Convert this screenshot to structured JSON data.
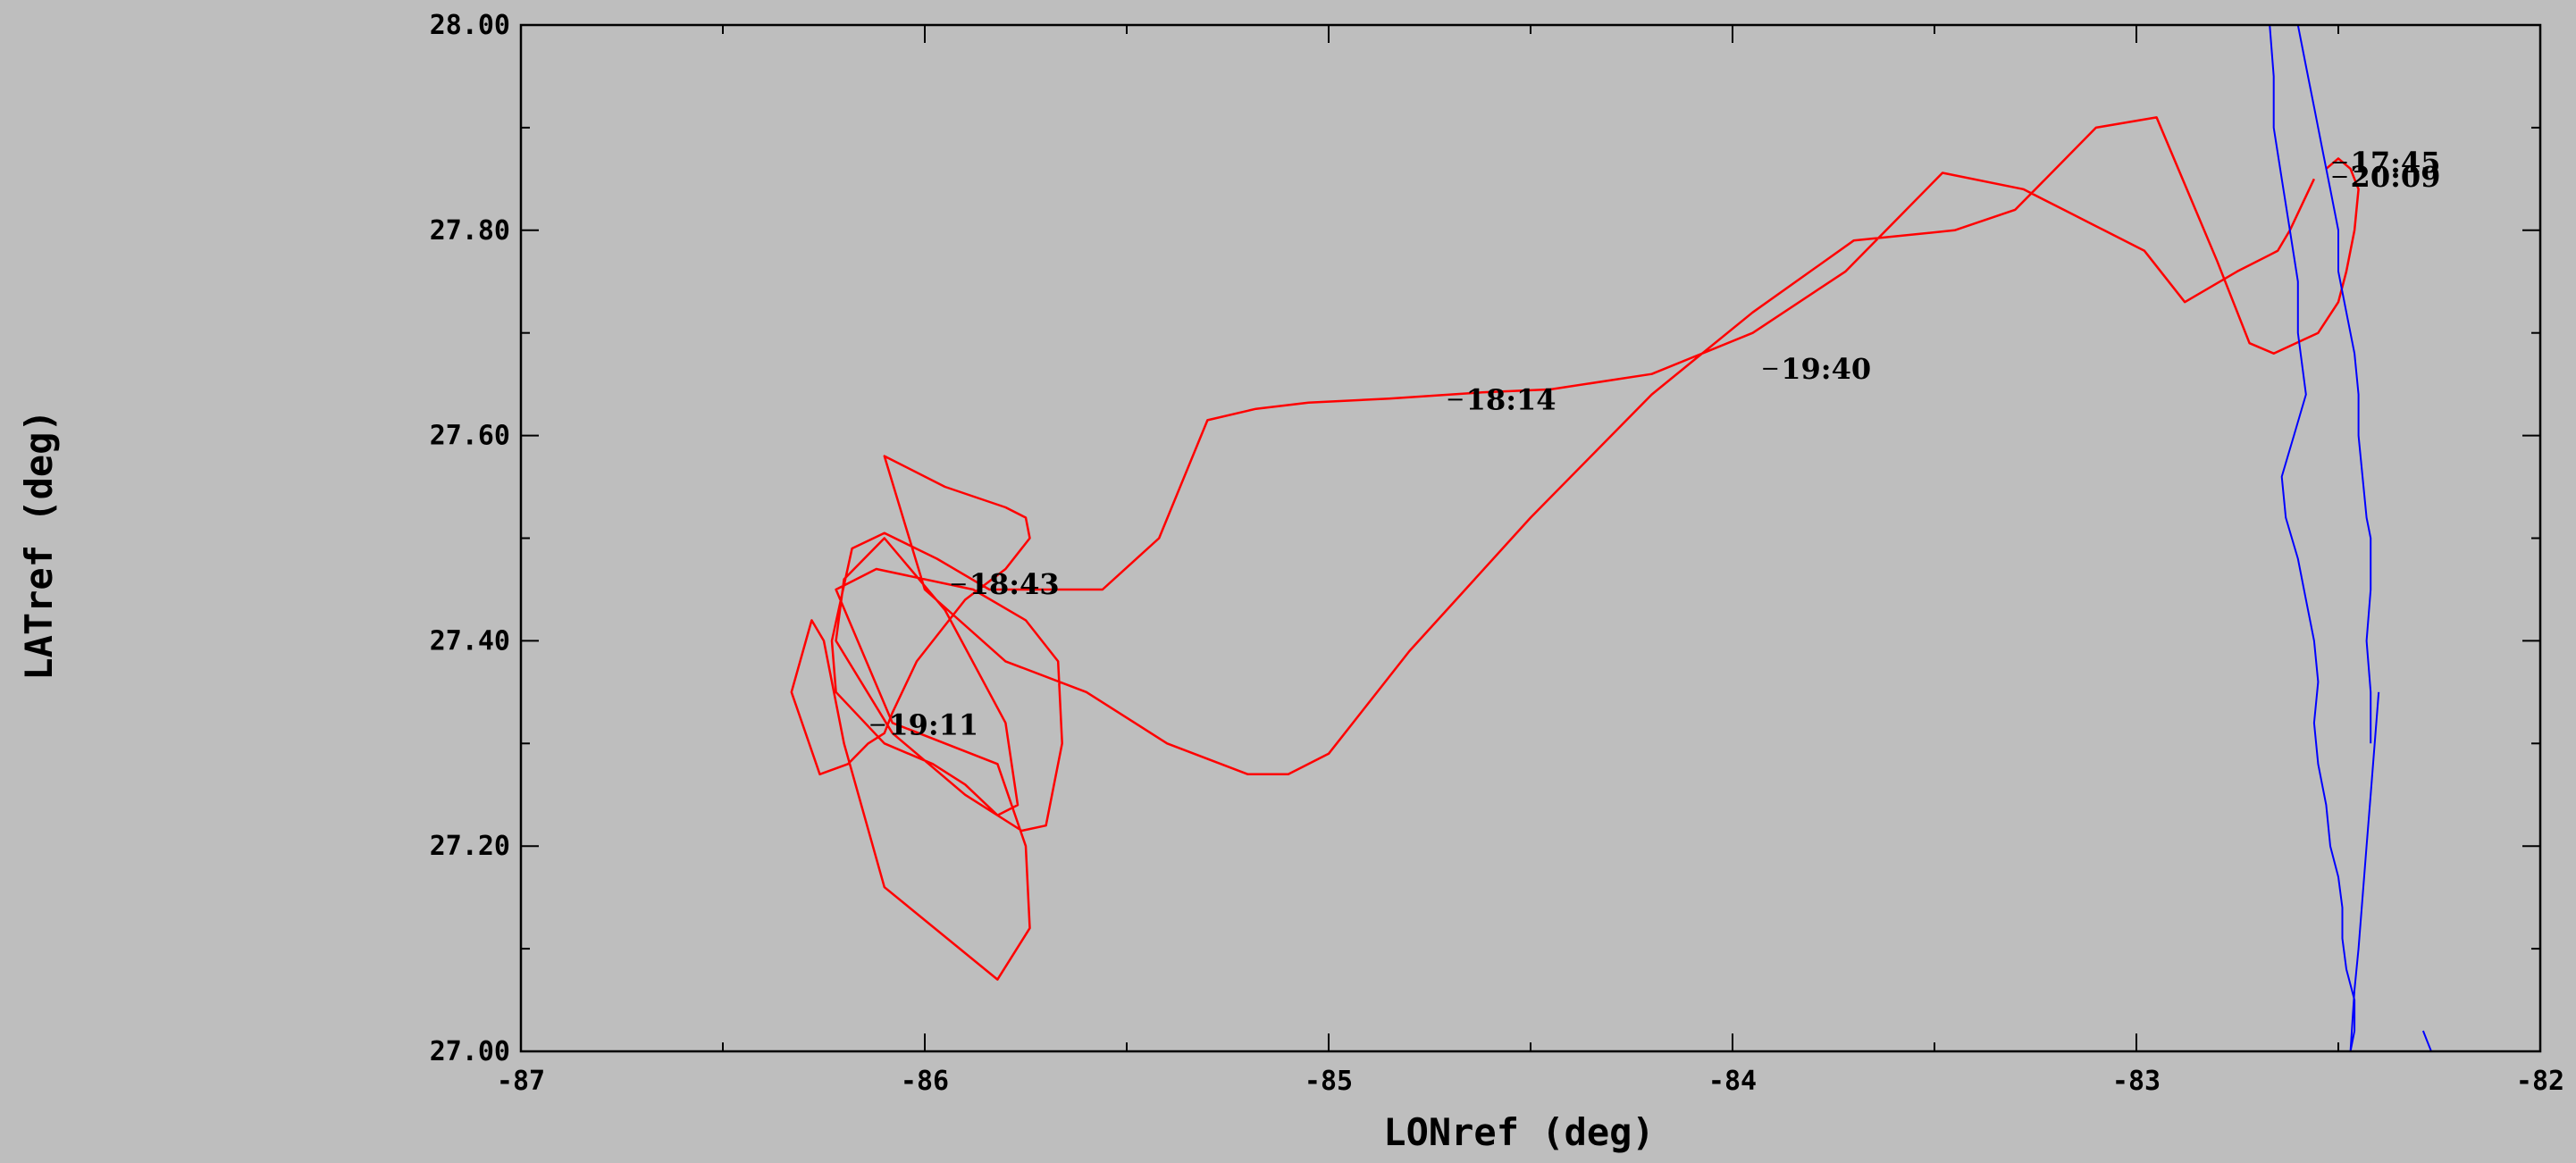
{
  "chart_data": {
    "type": "line",
    "xlabel": "LONref (deg)",
    "ylabel": "LATref (deg)",
    "xlim": [
      -87,
      -82
    ],
    "ylim": [
      27.0,
      28.0
    ],
    "x_ticks": [
      "-87",
      "-86",
      "-85",
      "-84",
      "-83",
      "-82"
    ],
    "y_ticks": [
      "27.00",
      "27.20",
      "27.40",
      "27.60",
      "27.80",
      "28.00"
    ],
    "grid": false,
    "colors": {
      "background": "#bebebe",
      "track": "#ff0000",
      "coastline": "#0000ff",
      "axes": "#000000"
    },
    "series": [
      {
        "role": "flight-track",
        "x": [
          -82.56,
          -82.62,
          -82.65,
          -82.75,
          -82.88,
          -82.98,
          -83.08,
          -83.18,
          -83.28,
          -83.48,
          -83.72,
          -83.95,
          -84.2,
          -84.45,
          -84.62,
          -84.85,
          -85.05,
          -85.18,
          -85.3,
          -85.42,
          -85.56,
          -85.72,
          -85.84,
          -85.97,
          -86.1,
          -86.18,
          -86.23,
          -86.22,
          -86.1,
          -85.98,
          -85.9,
          -85.82,
          -85.77,
          -85.8,
          -85.95,
          -86.1,
          -86.2,
          -86.22,
          -86.08,
          -85.9,
          -85.76,
          -85.7,
          -85.66,
          -85.67,
          -85.75,
          -85.88,
          -86.12,
          -86.22,
          -86.08,
          -85.82,
          -85.75,
          -85.74,
          -85.82,
          -86.1,
          -86.2,
          -86.25,
          -86.28,
          -86.33,
          -86.26,
          -86.19,
          -86.14,
          -86.1,
          -86.08,
          -86.02,
          -85.9,
          -85.8,
          -85.74,
          -85.75,
          -85.8,
          -85.95,
          -86.1,
          -86.0,
          -85.8,
          -85.6,
          -85.4,
          -85.2,
          -85.1,
          -85.0,
          -84.8,
          -84.5,
          -84.2,
          -83.95,
          -83.7,
          -83.45,
          -83.3,
          -83.2,
          -83.1,
          -82.95,
          -82.8,
          -82.72,
          -82.66,
          -82.55,
          -82.5,
          -82.48,
          -82.46,
          -82.45,
          -82.47,
          -82.5,
          -82.53
        ],
        "y": [
          27.85,
          27.8,
          27.78,
          27.76,
          27.73,
          27.78,
          27.8,
          27.82,
          27.84,
          27.856,
          27.76,
          27.7,
          27.66,
          27.645,
          27.642,
          27.636,
          27.632,
          27.626,
          27.615,
          27.5,
          27.45,
          27.45,
          27.45,
          27.48,
          27.505,
          27.49,
          27.4,
          27.35,
          27.3,
          27.28,
          27.26,
          27.23,
          27.24,
          27.32,
          27.43,
          27.5,
          27.46,
          27.4,
          27.31,
          27.25,
          27.215,
          27.22,
          27.3,
          27.38,
          27.42,
          27.45,
          27.47,
          27.45,
          27.32,
          27.28,
          27.2,
          27.12,
          27.07,
          27.16,
          27.3,
          27.4,
          27.42,
          27.35,
          27.27,
          27.28,
          27.3,
          27.31,
          27.33,
          27.38,
          27.44,
          27.47,
          27.5,
          27.52,
          27.53,
          27.55,
          27.58,
          27.45,
          27.38,
          27.35,
          27.3,
          27.27,
          27.27,
          27.29,
          27.39,
          27.52,
          27.64,
          27.72,
          27.79,
          27.8,
          27.82,
          27.86,
          27.9,
          27.91,
          27.77,
          27.69,
          27.68,
          27.7,
          27.73,
          27.76,
          27.8,
          27.84,
          27.86,
          27.87,
          27.86
        ]
      },
      {
        "role": "coastline",
        "x": [
          -82.67,
          -82.66,
          -82.66,
          -82.64,
          -82.62,
          -82.6,
          -82.6,
          -82.58,
          -82.61,
          -82.64,
          -82.63,
          -82.6,
          -82.58,
          -82.56,
          -82.55,
          -82.56,
          -82.55,
          -82.53,
          -82.52,
          -82.5,
          -82.49,
          -82.49,
          -82.48,
          -82.46,
          -82.46,
          -82.47,
          -82.46,
          -82.45,
          -82.44,
          -82.43,
          -82.42,
          -82.41,
          -82.4
        ],
        "y": [
          28.0,
          27.95,
          27.9,
          27.85,
          27.8,
          27.75,
          27.7,
          27.64,
          27.6,
          27.56,
          27.52,
          27.48,
          27.44,
          27.4,
          27.36,
          27.32,
          27.28,
          27.24,
          27.2,
          27.17,
          27.14,
          27.11,
          27.08,
          27.05,
          27.02,
          27.0,
          27.06,
          27.1,
          27.15,
          27.2,
          27.25,
          27.3,
          27.35
        ]
      },
      {
        "role": "inner-coastline",
        "x": [
          -82.6,
          -82.58,
          -82.56,
          -82.54,
          -82.52,
          -82.5,
          -82.5,
          -82.48,
          -82.46,
          -82.45,
          -82.45,
          -82.44,
          -82.43,
          -82.42,
          -82.42,
          -82.43,
          -82.42,
          -82.42
        ],
        "y": [
          28.0,
          27.96,
          27.92,
          27.88,
          27.84,
          27.8,
          27.76,
          27.72,
          27.68,
          27.64,
          27.6,
          27.56,
          27.52,
          27.5,
          27.45,
          27.4,
          27.35,
          27.3
        ]
      },
      {
        "role": "coastline-south",
        "x": [
          -82.29,
          -82.28,
          -82.27,
          -82.26
        ],
        "y": [
          27.02,
          27.01,
          27.0,
          27.0
        ]
      }
    ],
    "annotations": [
      {
        "text": "18:14",
        "x": -84.66,
        "y": 27.635
      },
      {
        "text": "19:40",
        "x": -83.88,
        "y": 27.665
      },
      {
        "text": "18:43",
        "x": -85.89,
        "y": 27.455
      },
      {
        "text": "19:11",
        "x": -86.09,
        "y": 27.318
      },
      {
        "text": "17:45",
        "x": -82.47,
        "y": 27.866
      },
      {
        "text": "20:09",
        "x": -82.47,
        "y": 27.852
      }
    ]
  }
}
